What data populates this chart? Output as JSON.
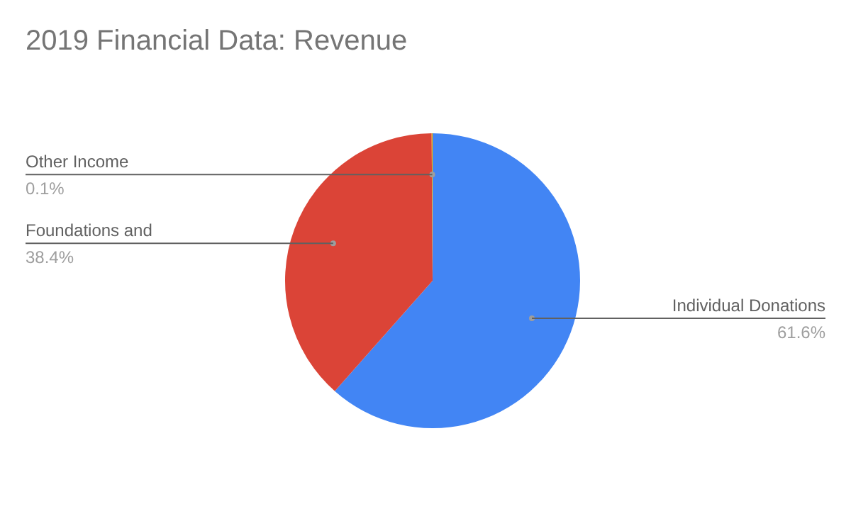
{
  "chart_data": {
    "type": "pie",
    "title": "2019 Financial Data: Revenue",
    "categories": [
      "Individual Donations",
      "Foundations and",
      "Other Income"
    ],
    "values": [
      61.6,
      38.4,
      0.1
    ],
    "colors": [
      "#4285f4",
      "#db4437",
      "#f4b400"
    ],
    "value_labels": [
      "61.6%",
      "38.4%",
      "0.1%"
    ],
    "legend": false
  }
}
